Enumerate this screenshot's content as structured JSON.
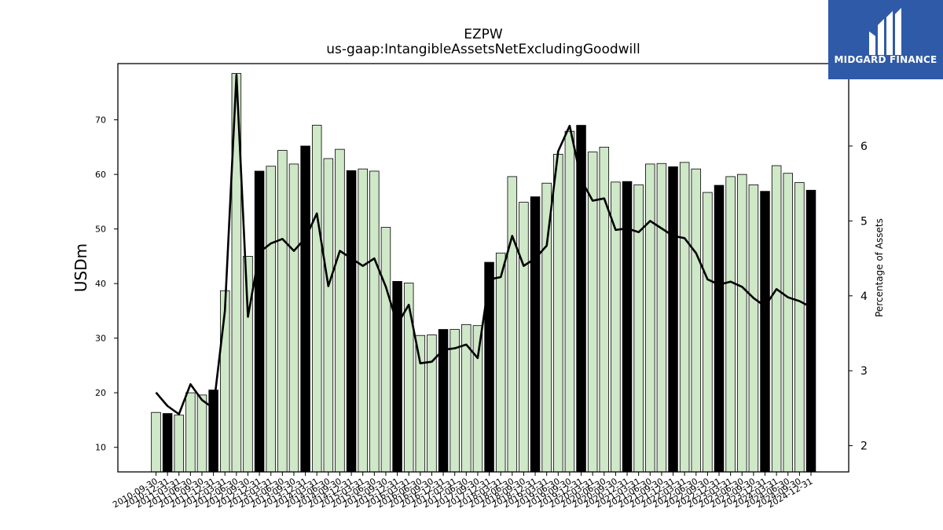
{
  "brand": {
    "name": "MIDGARD FINANCE",
    "bg_color": "#2f5aa8",
    "icon": "midgard-logo-icon"
  },
  "chart_data": {
    "type": "bar",
    "title": "EZPW",
    "subtitle": "us-gaap:IntangibleAssetsNetExcludingGoodwill",
    "ylabel": "USDm",
    "y2label": "Percentage of Assets",
    "ylim": [
      5.5,
      80.3
    ],
    "y2lim": [
      1.65,
      7.1
    ],
    "yticks": [
      10,
      20,
      30,
      40,
      50,
      60,
      70
    ],
    "y2ticks": [
      2,
      3,
      4,
      5,
      6
    ],
    "categories": [
      "2010-09-30",
      "2010-12-31",
      "2011-03-31",
      "2011-06-30",
      "2011-09-30",
      "2011-12-31",
      "2012-03-31",
      "2012-06-30",
      "2012-09-30",
      "2012-12-31",
      "2013-03-31",
      "2013-06-30",
      "2013-09-30",
      "2013-12-31",
      "2014-03-31",
      "2014-06-30",
      "2014-09-30",
      "2014-12-31",
      "2015-03-31",
      "2015-06-30",
      "2015-09-30",
      "2015-12-31",
      "2016-03-31",
      "2016-06-30",
      "2016-09-30",
      "2016-12-31",
      "2017-03-31",
      "2017-06-30",
      "2017-09-30",
      "2017-12-31",
      "2018-03-31",
      "2018-06-30",
      "2018-09-30",
      "2018-12-31",
      "2019-03-31",
      "2019-06-30",
      "2019-09-30",
      "2019-12-31",
      "2020-03-31",
      "2020-06-30",
      "2020-09-30",
      "2020-12-31",
      "2021-03-31",
      "2021-06-30",
      "2021-09-30",
      "2021-12-31",
      "2022-03-31",
      "2022-06-30",
      "2022-09-30",
      "2022-12-31",
      "2023-03-31",
      "2023-06-30",
      "2023-09-30",
      "2023-12-31",
      "2024-03-31",
      "2024-06-30",
      "2024-09-30",
      "2024-12-31"
    ],
    "series": [
      {
        "kind": "bar",
        "values": [
          16.4,
          16.2,
          15.9,
          20.0,
          19.6,
          20.5,
          38.7,
          78.5,
          45.0,
          60.6,
          61.5,
          64.4,
          61.9,
          65.2,
          69.0,
          62.9,
          64.6,
          60.7,
          61.0,
          60.6,
          50.3,
          40.4,
          40.1,
          30.5,
          30.6,
          31.6,
          31.6,
          32.5,
          32.3,
          43.9,
          45.6,
          59.6,
          54.9,
          55.9,
          58.4,
          63.7,
          67.9,
          69.0,
          64.1,
          65.0,
          58.6,
          58.7,
          58.1,
          61.9,
          62.0,
          61.4,
          62.2,
          61.0,
          56.7,
          58.0,
          59.6,
          60.0,
          58.1,
          56.9,
          61.6,
          60.2,
          58.5,
          57.1
        ],
        "highlight": [
          false,
          true,
          false,
          false,
          false,
          true,
          false,
          false,
          false,
          true,
          false,
          false,
          false,
          true,
          false,
          false,
          false,
          true,
          false,
          false,
          false,
          true,
          false,
          false,
          false,
          true,
          false,
          false,
          false,
          true,
          false,
          false,
          false,
          true,
          false,
          false,
          false,
          true,
          false,
          false,
          false,
          true,
          false,
          false,
          false,
          true,
          false,
          false,
          false,
          true,
          false,
          false,
          false,
          true,
          false,
          false,
          false,
          true
        ],
        "color": "#cfe8c8",
        "highlight_color": "#000000"
      },
      {
        "kind": "line",
        "axis": "right",
        "values": [
          2.71,
          2.53,
          2.42,
          2.82,
          2.61,
          2.5,
          3.8,
          6.95,
          3.72,
          4.58,
          4.7,
          4.76,
          4.6,
          4.77,
          5.1,
          4.13,
          4.6,
          4.5,
          4.4,
          4.5,
          4.12,
          3.62,
          3.88,
          3.1,
          3.12,
          3.28,
          3.3,
          3.35,
          3.17,
          4.22,
          4.25,
          4.8,
          4.4,
          4.5,
          4.67,
          5.93,
          6.27,
          5.55,
          5.27,
          5.3,
          4.88,
          4.9,
          4.85,
          5.0,
          4.9,
          4.8,
          4.77,
          4.57,
          4.22,
          4.15,
          4.19,
          4.12,
          3.97,
          3.86,
          4.09,
          3.98,
          3.93,
          3.85
        ],
        "color": "#000000"
      }
    ],
    "grid": false,
    "legend": "none"
  }
}
